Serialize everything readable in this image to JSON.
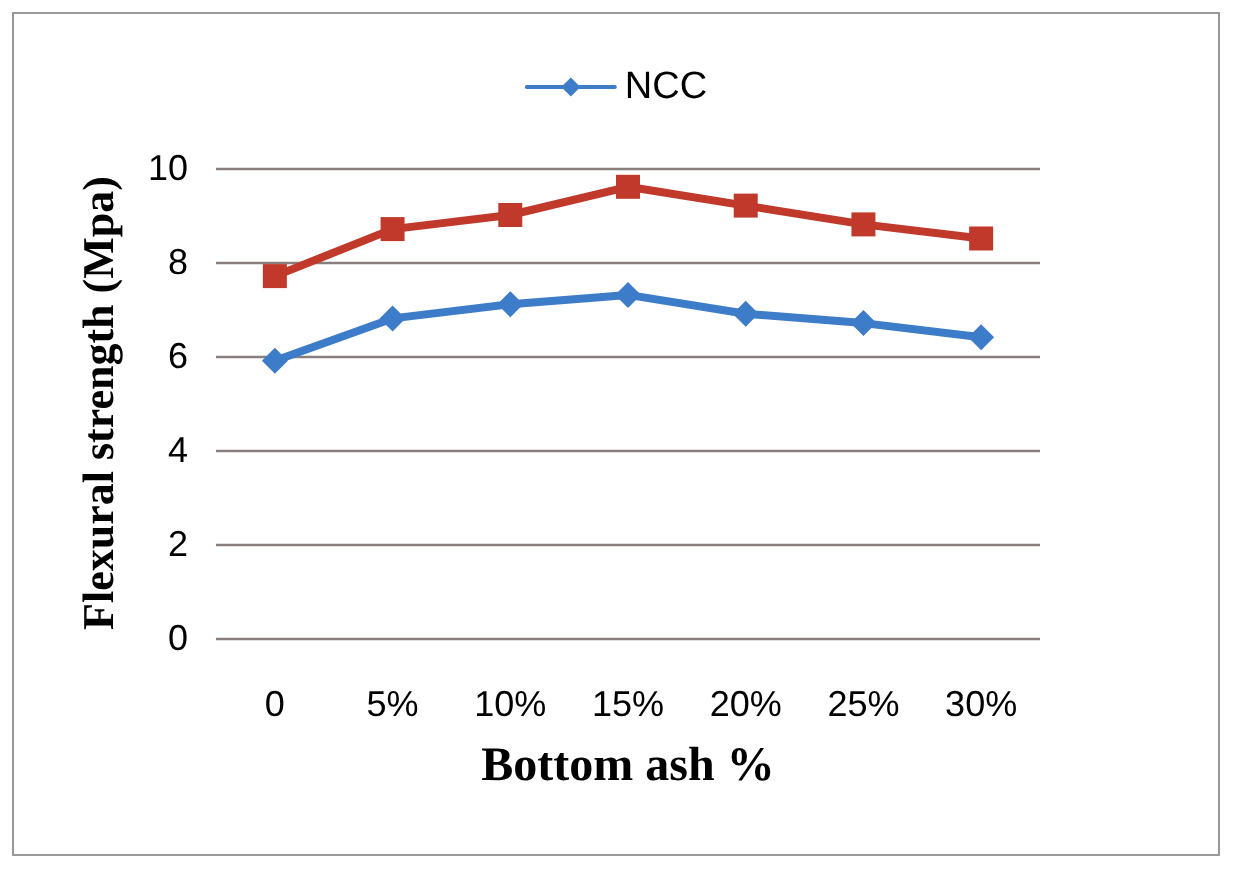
{
  "chart_data": {
    "type": "line",
    "xlabel": "Bottom ash %",
    "ylabel": "Flexural strength (Mpa)",
    "categories": [
      "0",
      "5%",
      "10%",
      "15%",
      "20%",
      "25%",
      "30%"
    ],
    "series": [
      {
        "name": "NCC",
        "color": "#3d7cc9",
        "marker": "diamond",
        "values": [
          5.9,
          6.8,
          7.1,
          7.3,
          6.9,
          6.7,
          6.4
        ]
      },
      {
        "color": "#c0392b",
        "marker": "square",
        "values": [
          7.7,
          8.7,
          9.0,
          9.6,
          9.2,
          8.8,
          8.5
        ]
      }
    ],
    "ylim": [
      0,
      10
    ],
    "yticks": [
      0,
      2,
      4,
      6,
      8,
      10
    ],
    "grid": "y",
    "legend": "top"
  }
}
